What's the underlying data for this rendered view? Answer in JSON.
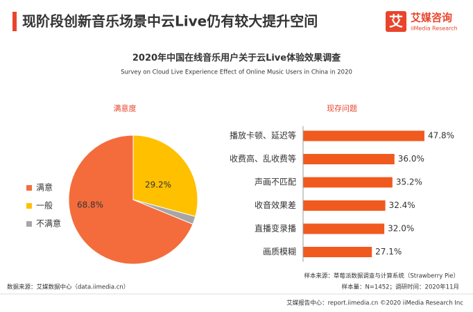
{
  "header": {
    "title": "现阶段创新音乐场景中云Live仍有较大提升空间",
    "logo_mark": "艾",
    "logo_cn": "艾媒咨询",
    "logo_en": "iiMedia Research"
  },
  "chart_data": [
    {
      "type": "title",
      "title": "2020年中国在线音乐用户关于云Live体验效果调查",
      "subtitle": "Survey on Cloud Live Experience Effect of Online Music Users  in China in 2020"
    },
    {
      "type": "pie",
      "title": "满意度",
      "categories": [
        "满意",
        "一般",
        "不满意"
      ],
      "values": [
        68.8,
        29.2,
        2.0
      ],
      "value_labels": [
        "68.8%",
        "29.2%",
        null
      ],
      "colors": [
        "#f46c3c",
        "#ffc000",
        "#a6a6a6"
      ],
      "legend": "left"
    },
    {
      "type": "hbar",
      "title": "现存问题",
      "categories": [
        "播放卡顿、延迟等",
        "收费高、乱收费等",
        "声画不匹配",
        "收音效果差",
        "直播变录播",
        "画质模糊"
      ],
      "values": [
        47.8,
        36.0,
        35.2,
        32.4,
        32.0,
        27.1
      ],
      "value_labels": [
        "47.8%",
        "36.0%",
        "35.2%",
        "32.4%",
        "32.0%",
        "27.1%"
      ],
      "color": "#f05a1e"
    }
  ],
  "footer": {
    "sample_source": "样本来源：草莓派数据调查与计算系统（Strawberry Pie）",
    "sample_info": "样本量：N=1452；调研时间：2020年11月",
    "data_source": "数据来源：艾媒数据中心（data.iimedia.cn）",
    "report": "艾媒报告中心：report.iimedia.cn ©2020  iiMedia Research  Inc"
  }
}
